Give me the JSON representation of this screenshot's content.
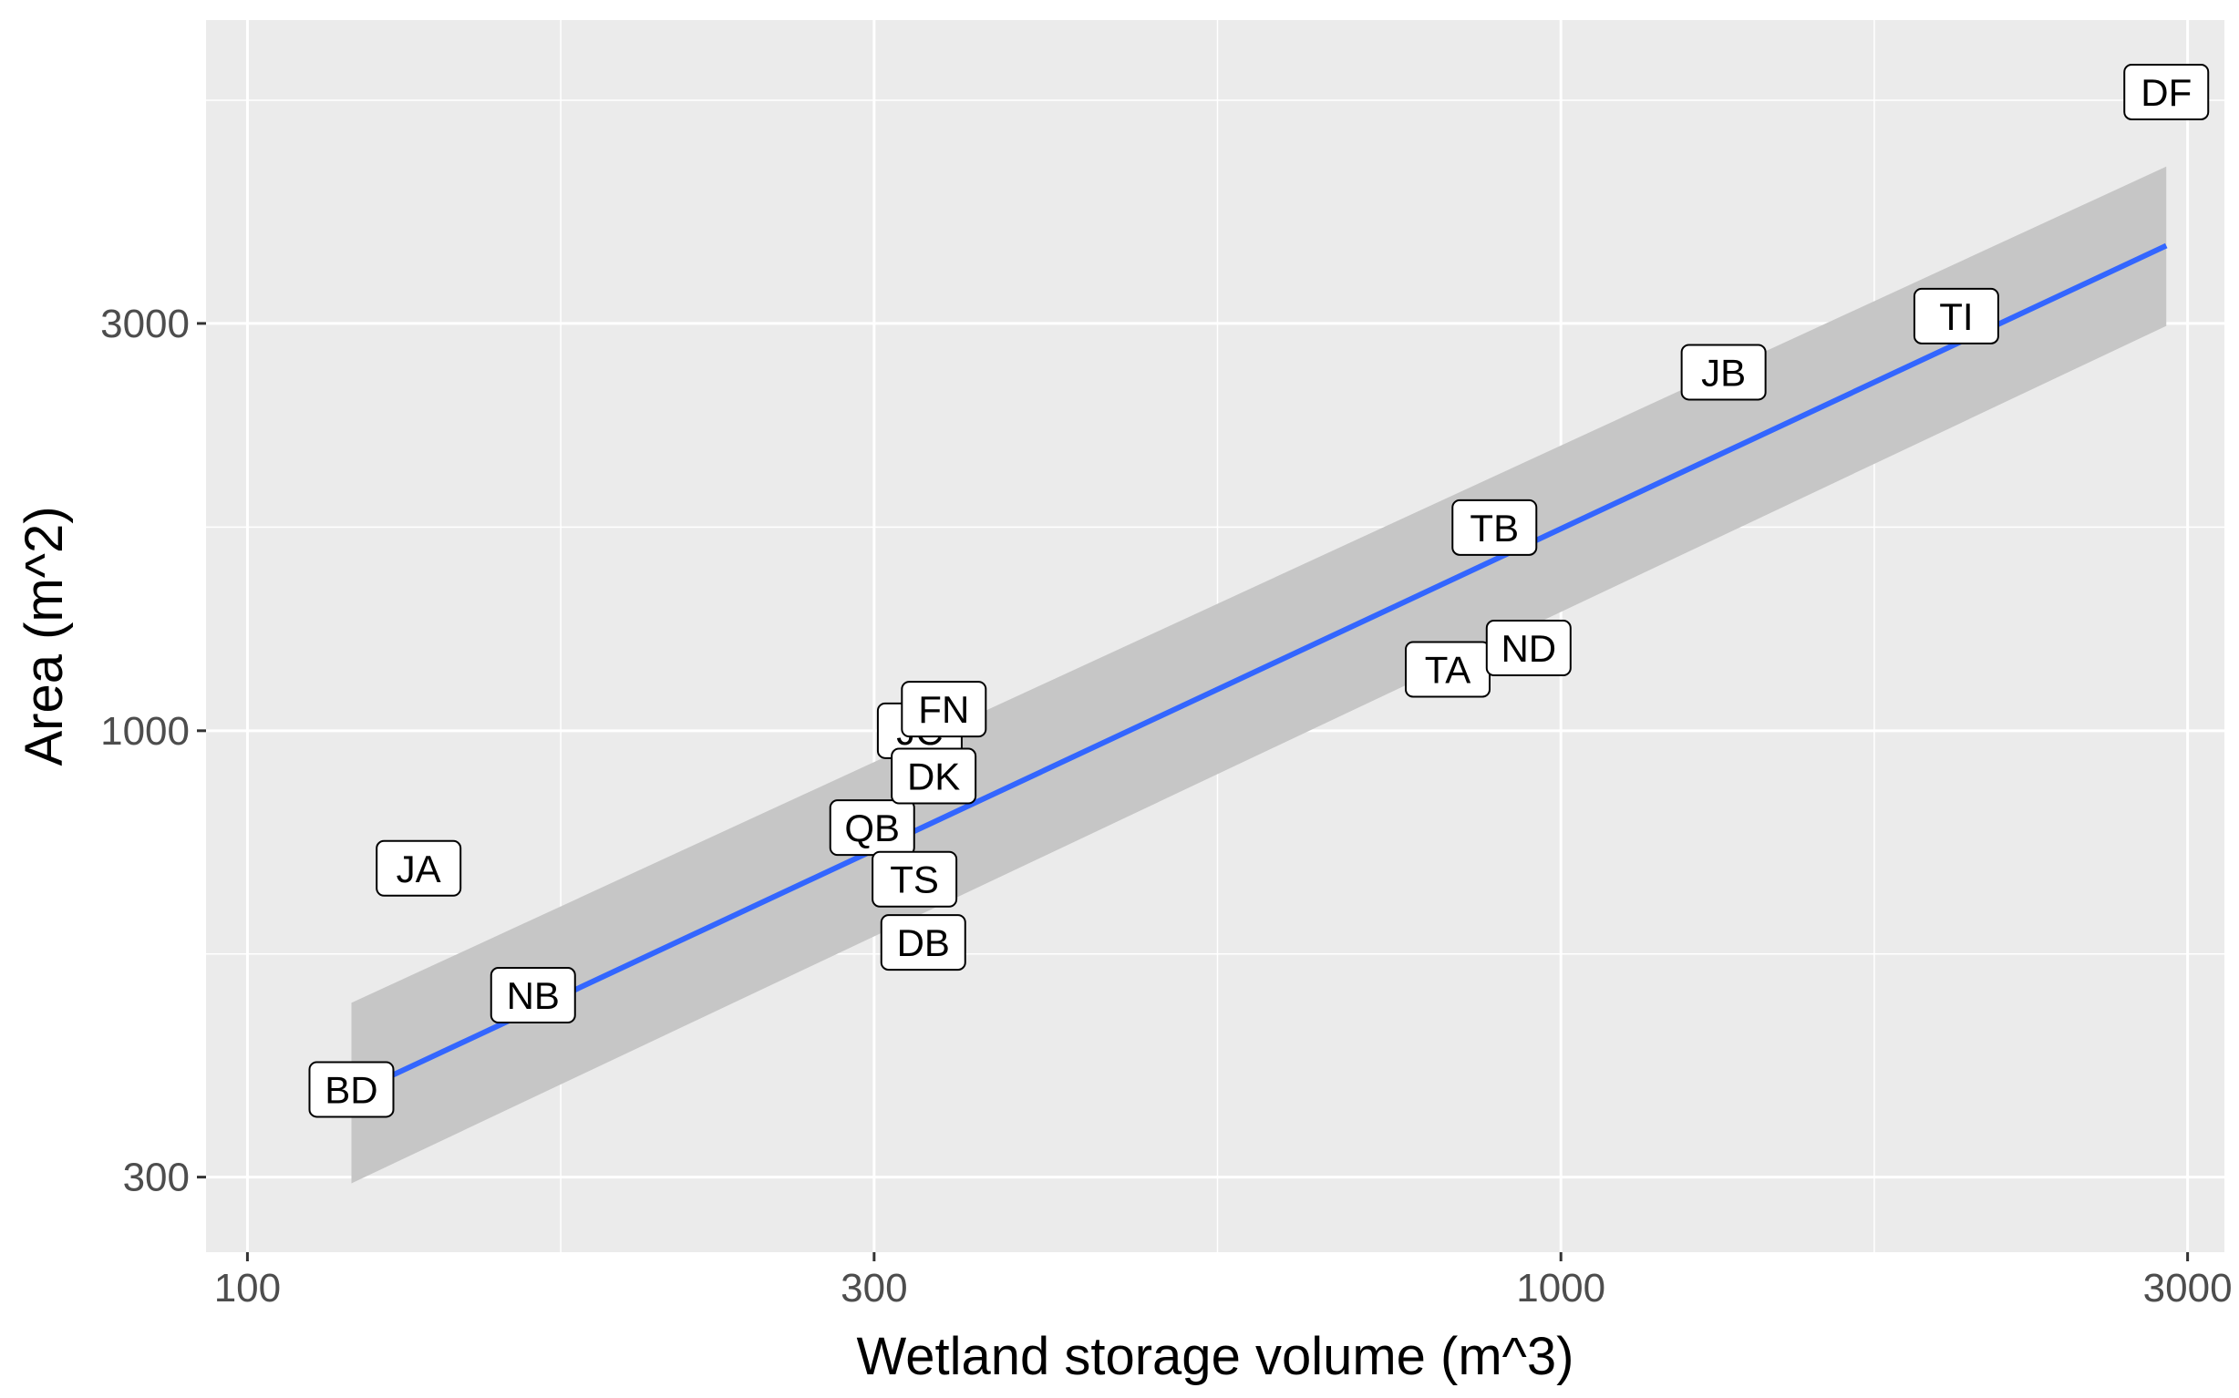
{
  "chart_data": {
    "type": "scatter",
    "title": "",
    "xlabel": "Wetland storage volume (m^3)",
    "ylabel": "Area (m^2)",
    "xscale": "log10",
    "yscale": "log10",
    "xlim": [
      93,
      3200
    ],
    "ylim": [
      245,
      6800
    ],
    "x_ticks": [
      100,
      300,
      1000,
      3000
    ],
    "x_tick_labels": [
      "100",
      "300",
      "1000",
      "3000"
    ],
    "y_ticks": [
      300,
      1000,
      3000
    ],
    "y_tick_labels": [
      "300",
      "1000",
      "3000"
    ],
    "grid": true,
    "legend": "none",
    "points": [
      {
        "label": "BD",
        "x": 120,
        "y": 380
      },
      {
        "label": "JA",
        "x": 135,
        "y": 690
      },
      {
        "label": "NB",
        "x": 165,
        "y": 490
      },
      {
        "label": "QB",
        "x": 299,
        "y": 770
      },
      {
        "label": "TS",
        "x": 322,
        "y": 670
      },
      {
        "label": "DB",
        "x": 327,
        "y": 565
      },
      {
        "label": "JC",
        "x": 325,
        "y": 1000
      },
      {
        "label": "DK",
        "x": 333,
        "y": 885
      },
      {
        "label": "FN",
        "x": 339,
        "y": 1060
      },
      {
        "label": "TA",
        "x": 820,
        "y": 1180
      },
      {
        "label": "ND",
        "x": 945,
        "y": 1250
      },
      {
        "label": "TB",
        "x": 890,
        "y": 1730
      },
      {
        "label": "JB",
        "x": 1330,
        "y": 2630
      },
      {
        "label": "TI",
        "x": 2000,
        "y": 3060
      },
      {
        "label": "DF",
        "x": 2890,
        "y": 5600
      }
    ],
    "fit": {
      "method": "linear (log-log)",
      "color": "#3366ff",
      "ribbon_color": "#c6c6c6",
      "x": [
        120,
        2890
      ],
      "y": [
        375,
        3700
      ],
      "ci_lower": [
        295,
        2980
      ],
      "ci_upper": [
        480,
        4580
      ]
    },
    "colors": {
      "panel_background": "#ebebeb",
      "grid_major": "#ffffff",
      "label_fill": "#ffffff",
      "label_border": "#000000"
    }
  }
}
